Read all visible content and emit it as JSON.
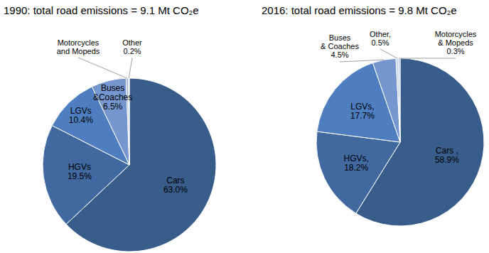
{
  "chart_data": [
    {
      "type": "pie",
      "title": "1990: total road emissions = 9.1 Mt CO₂e",
      "categories": [
        "Cars",
        "HGVs",
        "LGVs",
        "Buses &Coaches",
        "Motorcycles and Mopeds",
        "Other"
      ],
      "values": [
        63.0,
        19.5,
        10.4,
        6.5,
        0.4,
        0.2
      ],
      "value_labels": [
        "63.0%",
        "19.5%",
        "10.4%",
        "6.5%",
        null,
        "0.2%"
      ],
      "colors": [
        "#385d8a",
        "#4169a0",
        "#4e7ec0",
        "#7596cf",
        "#9db3dd",
        "#c5d3ec"
      ],
      "data_labels": true
    },
    {
      "type": "pie",
      "title": "2016: total road emissions = 9.8 Mt CO₂e",
      "categories": [
        "Cars ,",
        "HGVs,",
        "LGVs,",
        "Buses & Coaches",
        "Other,",
        "Motorcycles & Mopeds"
      ],
      "values": [
        58.9,
        18.2,
        17.7,
        4.5,
        0.5,
        0.3
      ],
      "value_labels": [
        "58.9%",
        "18.2%",
        "17.7%",
        "4.5%",
        "0.5%",
        "0.3%"
      ],
      "colors": [
        "#385d8a",
        "#4169a0",
        "#4e7ec0",
        "#7596cf",
        "#c5d3ec",
        "#9db3dd"
      ],
      "data_labels": true
    }
  ]
}
